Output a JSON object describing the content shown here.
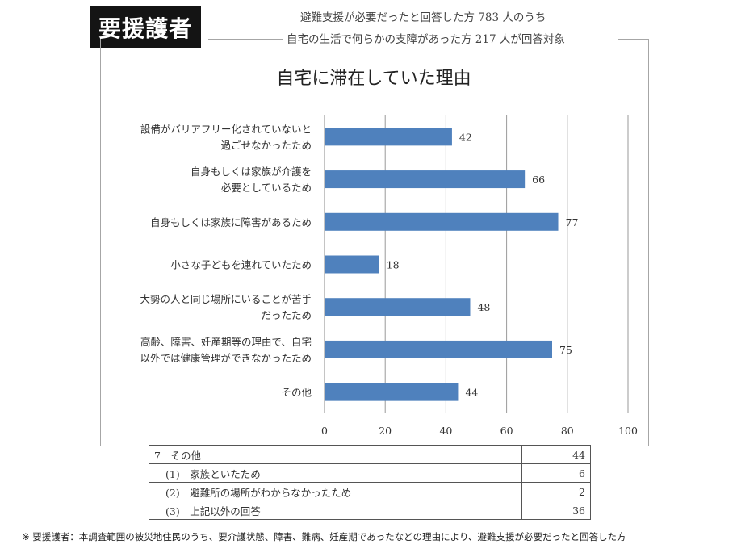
{
  "header": {
    "tag": "要援護者",
    "subtitle_line1": "避難支援が必要だったと回答した方 783 人のうち",
    "subtitle_line2": "自宅の生活で何らかの支障があった方 217 人が回答対象"
  },
  "chart_data": {
    "type": "bar",
    "orientation": "horizontal",
    "title": "自宅に滞在していた理由",
    "categories": [
      [
        "設備がバリアフリー化されていないと",
        "過ごせなかったため"
      ],
      [
        "自身もしくは家族が介護を",
        "必要としているため"
      ],
      [
        "自身もしくは家族に障害があるため"
      ],
      [
        "小さな子どもを連れていたため"
      ],
      [
        "大勢の人と同じ場所にいることが苦手",
        "だったため"
      ],
      [
        "高齢、障害、妊産期等の理由で、自宅",
        "以外では健康管理ができなかったため"
      ],
      [
        "その他"
      ]
    ],
    "values": [
      42,
      66,
      77,
      18,
      48,
      75,
      44
    ],
    "xlim": [
      0,
      100
    ],
    "xticks": [
      0,
      20,
      40,
      60,
      80,
      100
    ],
    "grid": true,
    "bar_color": "#4f81bd"
  },
  "table": {
    "rows": [
      {
        "label": "7　その他",
        "value": "44",
        "sub": false
      },
      {
        "label": "(1)　家族といたため",
        "value": "6",
        "sub": true
      },
      {
        "label": "(2)　避難所の場所がわからなかったため",
        "value": "2",
        "sub": true
      },
      {
        "label": "(3)　上記以外の回答",
        "value": "36",
        "sub": true
      }
    ]
  },
  "footnote": "※ 要援護者：本調査範囲の被災地住民のうち、要介護状態、障害、難病、妊産期であったなどの理由により、避難支援が必要だったと回答した方"
}
